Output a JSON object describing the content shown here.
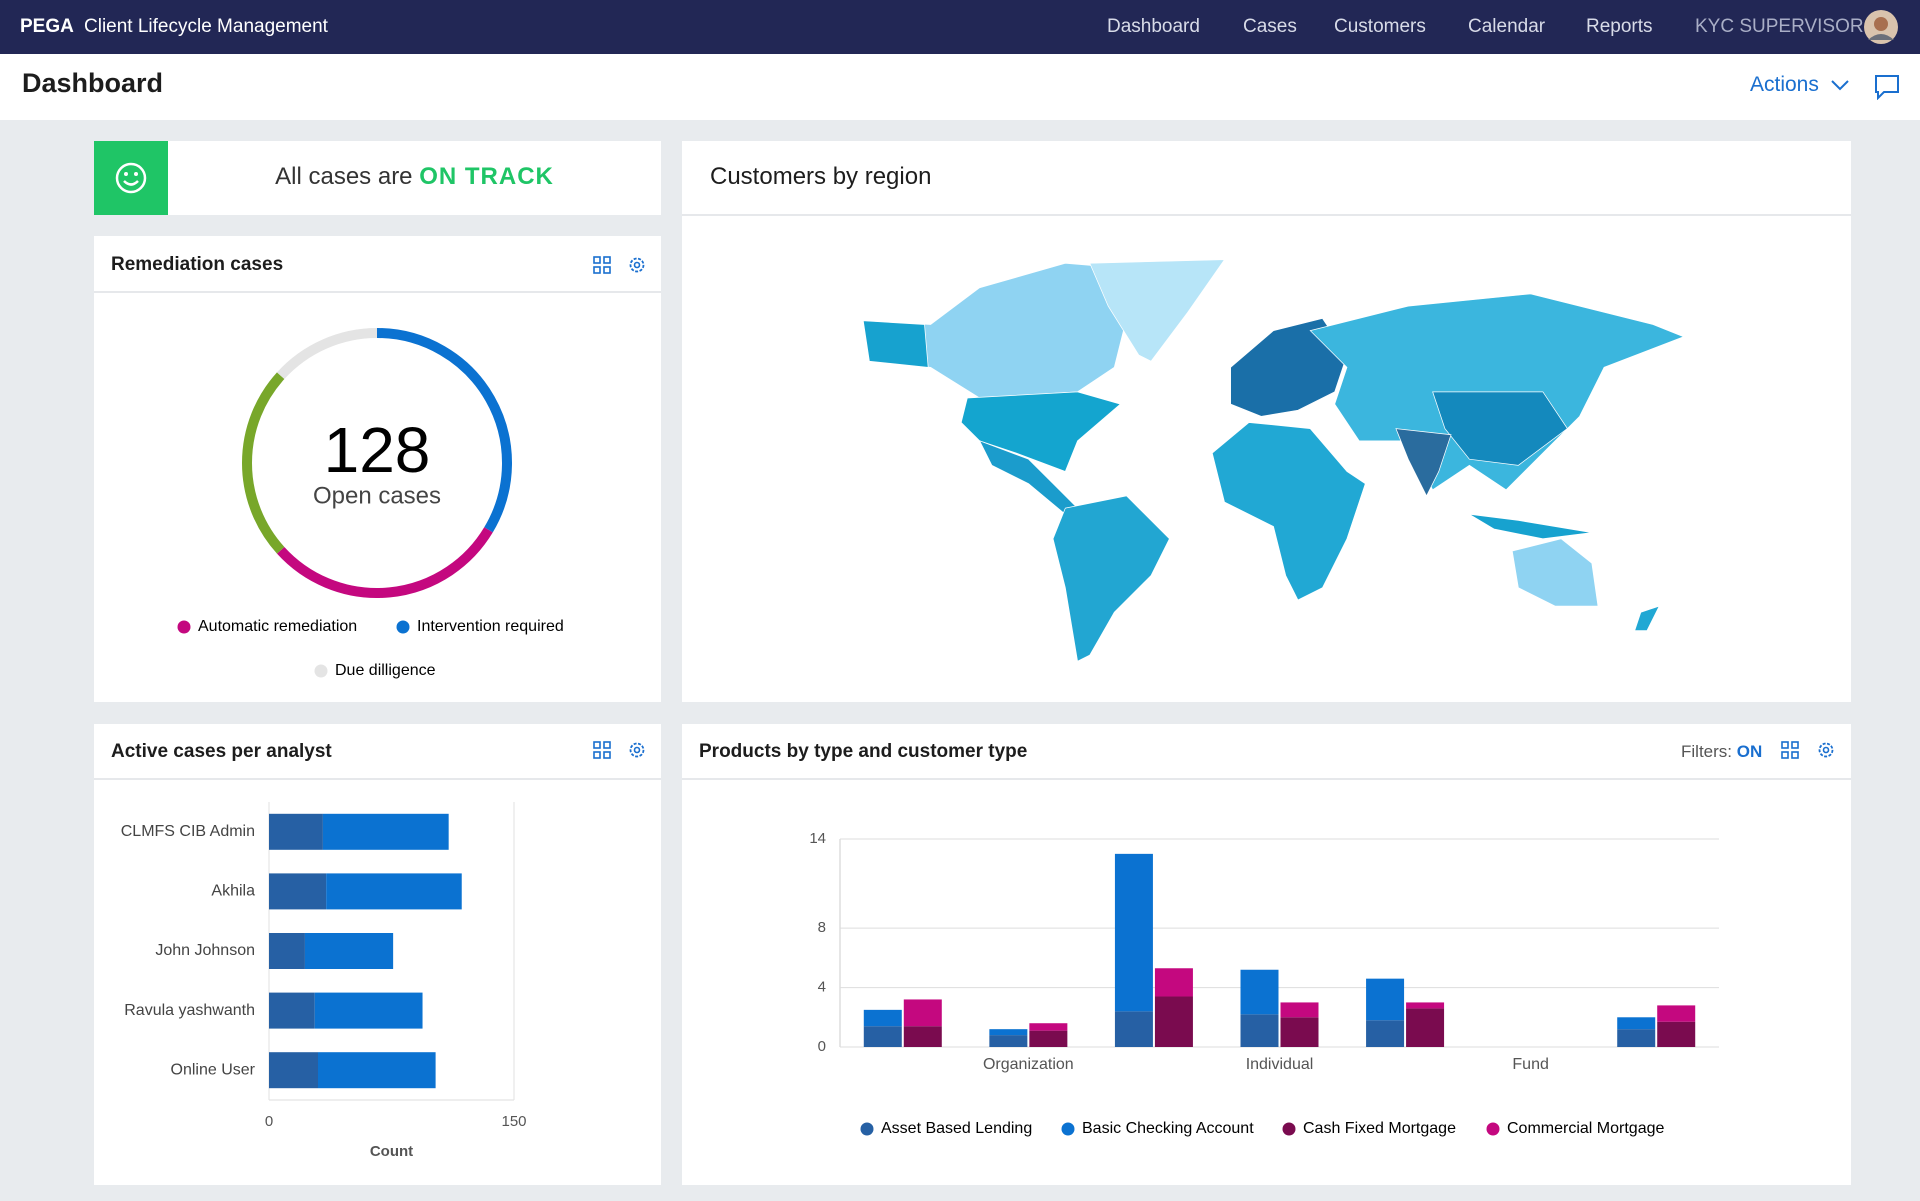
{
  "nav": {
    "brand": "PEGA",
    "app": "Client Lifecycle Management",
    "links": [
      "Dashboard",
      "Cases",
      "Customers",
      "Calendar",
      "Reports"
    ],
    "user": "KYC SUPERVISOR"
  },
  "header": {
    "title": "Dashboard",
    "actions": "Actions"
  },
  "status": {
    "text": "All cases are",
    "state": "ON TRACK"
  },
  "map": {
    "title": "Customers by region"
  },
  "chart_data": [
    {
      "type": "donut",
      "title": "Remediation cases",
      "total": 128,
      "total_label": "Open cases",
      "series": [
        {
          "name": "Intervention required",
          "color": "#0b72d1",
          "value": 43
        },
        {
          "name": "Automatic remediation",
          "color": "#c4087f",
          "value": 38
        },
        {
          "color": "#78a72a",
          "value": 30
        },
        {
          "name": "Due dilligence",
          "color": "#e4e4e4",
          "value": 17
        }
      ]
    },
    {
      "type": "hbar",
      "title": "Active cases per analyst",
      "categories": [
        "CLMFS CIB Admin",
        "Akhila",
        "John Johnson",
        "Ravula yashwanth",
        "Online User"
      ],
      "series": [
        {
          "color": "#2660a4",
          "values": [
            33,
            35,
            22,
            28,
            30
          ]
        },
        {
          "color": "#0b72d1",
          "values": [
            77,
            83,
            54,
            66,
            72
          ]
        }
      ],
      "xlim": [
        0,
        150
      ],
      "xticks": [
        0,
        150
      ],
      "xlabel": "Count",
      "grid": true
    },
    {
      "type": "bar",
      "stacked": true,
      "title": "Products by type and customer type",
      "filters_label": "Filters:",
      "filters_state": "ON",
      "categories": [
        null,
        "Organization",
        null,
        "Individual",
        null,
        "Fund",
        null
      ],
      "series": [
        {
          "name": "Asset Based Lending",
          "color": "#2660a4",
          "stack": 0,
          "values": [
            1.4,
            0.8,
            2.4,
            2.2,
            1.8,
            0,
            1.2
          ]
        },
        {
          "name": "Basic Checking Account",
          "color": "#0b72d1",
          "stack": 0,
          "values": [
            1.1,
            0.4,
            10.6,
            3.0,
            2.8,
            0,
            0.8
          ]
        },
        {
          "name": "Cash Fixed Mortgage",
          "color": "#7a0b4f",
          "stack": 1,
          "values": [
            1.4,
            1.1,
            3.4,
            2.0,
            2.6,
            0,
            1.7
          ]
        },
        {
          "name": "Commercial Mortgage",
          "color": "#c4087f",
          "stack": 1,
          "values": [
            1.8,
            0.5,
            1.9,
            1.0,
            0.4,
            0,
            1.1
          ]
        }
      ],
      "ylim": [
        0,
        14
      ],
      "yticks": [
        0,
        4,
        8,
        14
      ],
      "grid": true,
      "legend": "bottom"
    }
  ]
}
